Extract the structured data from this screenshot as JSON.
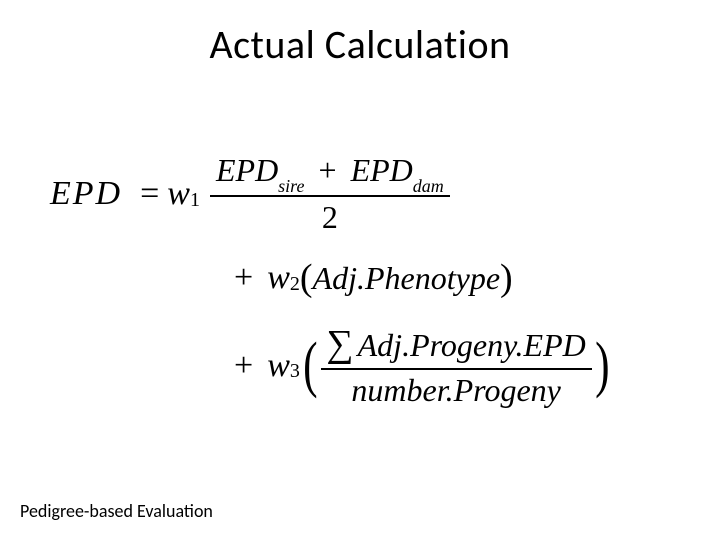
{
  "title": "Actual Calculation",
  "footer": "Pedigree-based Evaluation",
  "formula": {
    "lhs": "EPD",
    "eq": "=",
    "w1": "w",
    "w1sub": "1",
    "w2": "w",
    "w2sub": "2",
    "w3": "w",
    "w3sub": "3",
    "plus": "+",
    "line1": {
      "num_left": "EPD",
      "num_left_sub": "sire",
      "num_plus": "+",
      "num_right": "EPD",
      "num_right_sub": "dam",
      "den": "2"
    },
    "line2": {
      "open": "(",
      "term": "Adj.Phenotype",
      "close": ")"
    },
    "line3": {
      "open": "(",
      "sum": "∑",
      "num": "Adj.Progeny.EPD",
      "den": "number.Progeny",
      "close": ")"
    }
  },
  "style": {
    "title_fontsize": 40,
    "formula_fontsize": 34,
    "footer_fontsize": 18,
    "text_color": "#000000",
    "background_color": "#ffffff",
    "font_family_title": "Calibri",
    "font_family_math": "Times New Roman"
  }
}
